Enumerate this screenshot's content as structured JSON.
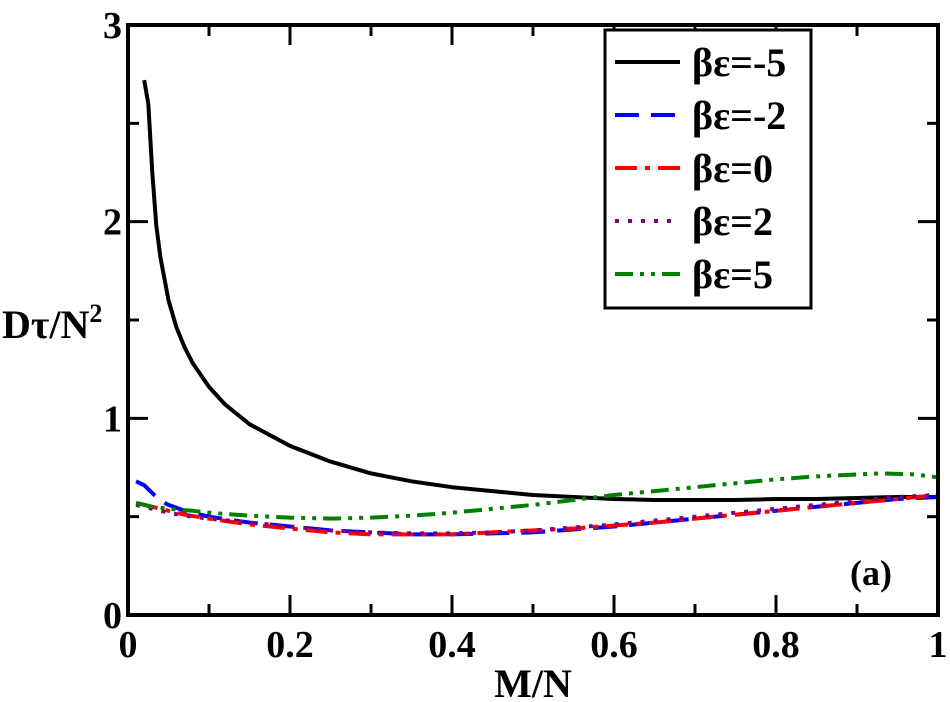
{
  "chart_data": {
    "type": "line",
    "title": "",
    "xlabel": "M/N",
    "ylabel_main": "Dτ/N",
    "ylabel_sup": "2",
    "xlim": [
      0,
      1
    ],
    "ylim": [
      0,
      3
    ],
    "xticks": [
      0,
      0.2,
      0.4,
      0.6,
      0.8,
      1
    ],
    "xtick_labels": [
      "0",
      "0.2",
      "0.4",
      "0.6",
      "0.8",
      "1"
    ],
    "yticks": [
      0,
      1,
      2,
      3
    ],
    "ytick_labels": [
      "0",
      "1",
      "2",
      "3"
    ],
    "annotation": "(a)",
    "legend_position": "top-right",
    "series": [
      {
        "name": "βε=-5",
        "color": "#000000",
        "dash": "solid",
        "x": [
          0.02,
          0.025,
          0.03,
          0.035,
          0.04,
          0.05,
          0.06,
          0.07,
          0.08,
          0.1,
          0.12,
          0.15,
          0.2,
          0.25,
          0.3,
          0.35,
          0.4,
          0.45,
          0.5,
          0.55,
          0.6,
          0.65,
          0.7,
          0.75,
          0.8,
          0.85,
          0.9,
          0.95,
          1.0
        ],
        "y": [
          2.72,
          2.6,
          2.25,
          1.98,
          1.82,
          1.6,
          1.46,
          1.36,
          1.28,
          1.16,
          1.07,
          0.97,
          0.86,
          0.78,
          0.72,
          0.68,
          0.65,
          0.63,
          0.61,
          0.6,
          0.59,
          0.585,
          0.585,
          0.585,
          0.59,
          0.59,
          0.595,
          0.6,
          0.6
        ]
      },
      {
        "name": "βε=-2",
        "color": "#0000ff",
        "dash": "dash",
        "x": [
          0.01,
          0.02,
          0.03,
          0.04,
          0.05,
          0.07,
          0.1,
          0.15,
          0.2,
          0.25,
          0.3,
          0.35,
          0.4,
          0.45,
          0.5,
          0.55,
          0.6,
          0.65,
          0.7,
          0.75,
          0.8,
          0.85,
          0.9,
          0.95,
          1.0
        ],
        "y": [
          0.68,
          0.66,
          0.62,
          0.58,
          0.56,
          0.53,
          0.5,
          0.47,
          0.45,
          0.43,
          0.42,
          0.41,
          0.41,
          0.415,
          0.42,
          0.435,
          0.45,
          0.47,
          0.49,
          0.51,
          0.53,
          0.55,
          0.57,
          0.59,
          0.6
        ]
      },
      {
        "name": "βε=0",
        "color": "#ff0000",
        "dash": "dashdot",
        "x": [
          0.01,
          0.03,
          0.05,
          0.07,
          0.1,
          0.15,
          0.2,
          0.25,
          0.3,
          0.35,
          0.4,
          0.45,
          0.5,
          0.55,
          0.6,
          0.65,
          0.7,
          0.75,
          0.8,
          0.85,
          0.9,
          0.95,
          1.0
        ],
        "y": [
          0.57,
          0.55,
          0.53,
          0.51,
          0.49,
          0.46,
          0.44,
          0.42,
          0.41,
          0.41,
          0.41,
          0.42,
          0.43,
          0.44,
          0.455,
          0.47,
          0.49,
          0.51,
          0.53,
          0.55,
          0.57,
          0.59,
          0.61
        ]
      },
      {
        "name": "βε=2",
        "color": "#7f007f",
        "dash": "dot",
        "x": [
          0.01,
          0.03,
          0.05,
          0.07,
          0.1,
          0.15,
          0.2,
          0.25,
          0.3,
          0.35,
          0.4,
          0.45,
          0.5,
          0.55,
          0.6,
          0.65,
          0.7,
          0.75,
          0.8,
          0.85,
          0.9,
          0.95,
          1.0
        ],
        "y": [
          0.56,
          0.54,
          0.52,
          0.505,
          0.49,
          0.47,
          0.45,
          0.43,
          0.42,
          0.415,
          0.415,
          0.42,
          0.43,
          0.445,
          0.46,
          0.48,
          0.5,
          0.52,
          0.54,
          0.56,
          0.58,
          0.6,
          0.61
        ]
      },
      {
        "name": "βε=5",
        "color": "#008000",
        "dash": "dashdotdot",
        "x": [
          0.01,
          0.03,
          0.05,
          0.08,
          0.1,
          0.15,
          0.2,
          0.25,
          0.3,
          0.35,
          0.4,
          0.45,
          0.5,
          0.55,
          0.6,
          0.65,
          0.7,
          0.75,
          0.8,
          0.85,
          0.9,
          0.93,
          0.97,
          1.0
        ],
        "y": [
          0.57,
          0.55,
          0.54,
          0.53,
          0.52,
          0.505,
          0.495,
          0.49,
          0.495,
          0.505,
          0.52,
          0.54,
          0.56,
          0.585,
          0.61,
          0.63,
          0.65,
          0.67,
          0.69,
          0.705,
          0.715,
          0.72,
          0.715,
          0.7
        ]
      }
    ]
  }
}
